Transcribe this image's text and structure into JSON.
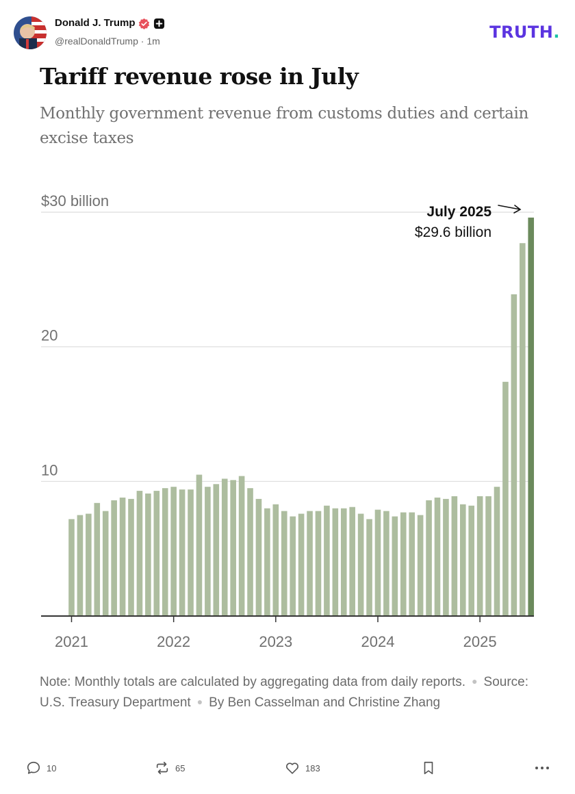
{
  "post": {
    "author_name": "Donald J. Trump",
    "handle": "@realDonaldTrump",
    "time": "1m",
    "logo": "TRUTH",
    "logo_dot": "."
  },
  "graphic": {
    "title": "Tariff revenue rose in July",
    "subtitle": "Monthly government revenue from customs duties and certain excise taxes",
    "note": "Note: Monthly totals are calculated by aggregating data from daily reports.",
    "source": "Source: U.S. Treasury Department",
    "byline": "By Ben Casselman and Christine Zhang"
  },
  "chart_data": {
    "type": "bar",
    "title": "Tariff revenue rose in July",
    "xlabel": "",
    "ylabel": "",
    "ylim": [
      0,
      30
    ],
    "yticks": [
      {
        "value": 10,
        "label": "10"
      },
      {
        "value": 20,
        "label": "20"
      },
      {
        "value": 30,
        "label": "$30 billion"
      }
    ],
    "xticks": [
      {
        "index": 0,
        "label": "2021"
      },
      {
        "index": 12,
        "label": "2022"
      },
      {
        "index": 24,
        "label": "2023"
      },
      {
        "index": 36,
        "label": "2024"
      },
      {
        "index": 48,
        "label": "2025"
      }
    ],
    "categories": [
      "Jan 2021",
      "Feb 2021",
      "Mar 2021",
      "Apr 2021",
      "May 2021",
      "Jun 2021",
      "Jul 2021",
      "Aug 2021",
      "Sep 2021",
      "Oct 2021",
      "Nov 2021",
      "Dec 2021",
      "Jan 2022",
      "Feb 2022",
      "Mar 2022",
      "Apr 2022",
      "May 2022",
      "Jun 2022",
      "Jul 2022",
      "Aug 2022",
      "Sep 2022",
      "Oct 2022",
      "Nov 2022",
      "Dec 2022",
      "Jan 2023",
      "Feb 2023",
      "Mar 2023",
      "Apr 2023",
      "May 2023",
      "Jun 2023",
      "Jul 2023",
      "Aug 2023",
      "Sep 2023",
      "Oct 2023",
      "Nov 2023",
      "Dec 2023",
      "Jan 2024",
      "Feb 2024",
      "Mar 2024",
      "Apr 2024",
      "May 2024",
      "Jun 2024",
      "Jul 2024",
      "Aug 2024",
      "Sep 2024",
      "Oct 2024",
      "Nov 2024",
      "Dec 2024",
      "Jan 2025",
      "Feb 2025",
      "Mar 2025",
      "Apr 2025",
      "May 2025",
      "Jun 2025",
      "Jul 2025"
    ],
    "values": [
      7.2,
      7.5,
      7.6,
      8.4,
      7.8,
      8.6,
      8.8,
      8.7,
      9.3,
      9.1,
      9.3,
      9.5,
      9.6,
      9.4,
      9.4,
      10.5,
      9.6,
      9.8,
      10.2,
      10.1,
      10.4,
      9.5,
      8.7,
      8.0,
      8.3,
      7.8,
      7.4,
      7.6,
      7.8,
      7.8,
      8.2,
      8.0,
      8.0,
      8.1,
      7.6,
      7.2,
      7.9,
      7.8,
      7.4,
      7.7,
      7.7,
      7.5,
      8.6,
      8.8,
      8.7,
      8.9,
      8.3,
      8.2,
      8.9,
      8.9,
      9.6,
      17.4,
      23.9,
      27.7,
      29.6
    ],
    "colors": {
      "bar": "#adbd9f",
      "highlight": "#6b8a5c",
      "grid": "#dcdcdc",
      "axis": "#333333",
      "label": "#707070"
    },
    "annotation": {
      "label": "July 2025",
      "value_text": "$29.6 billion",
      "index": 54
    }
  },
  "actions": {
    "replies": "10",
    "reposts": "65",
    "likes": "183"
  }
}
